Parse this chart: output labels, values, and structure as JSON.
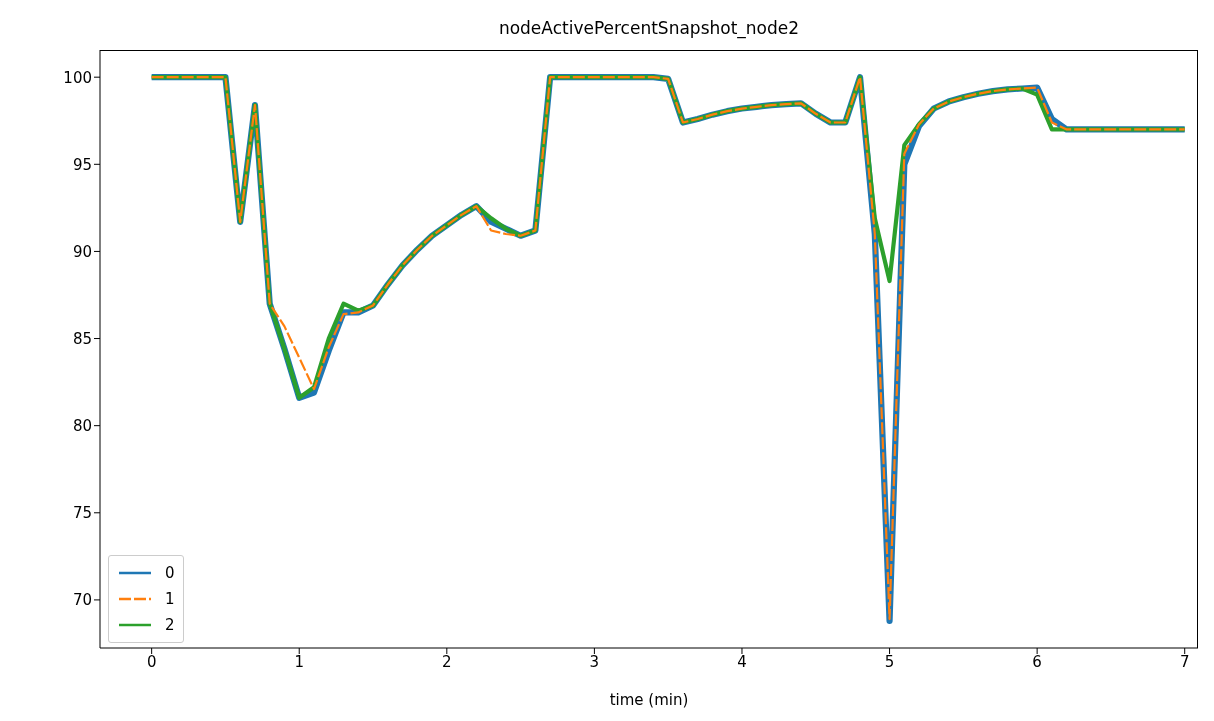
{
  "chart_data": {
    "type": "line",
    "title": "nodeActivePercentSnapshot_node2",
    "xlabel": "time (min)",
    "x": [
      0,
      0.1,
      0.2,
      0.3,
      0.4,
      0.5,
      0.6,
      0.7,
      0.8,
      0.9,
      1.0,
      1.1,
      1.2,
      1.3,
      1.4,
      1.5,
      1.6,
      1.7,
      1.8,
      1.9,
      2.0,
      2.1,
      2.2,
      2.3,
      2.4,
      2.5,
      2.6,
      2.7,
      2.8,
      2.9,
      3.0,
      3.1,
      3.2,
      3.3,
      3.4,
      3.5,
      3.6,
      3.7,
      3.8,
      3.9,
      4.0,
      4.1,
      4.2,
      4.3,
      4.4,
      4.5,
      4.6,
      4.7,
      4.8,
      4.9,
      5.0,
      5.1,
      5.2,
      5.3,
      5.4,
      5.5,
      5.6,
      5.7,
      5.8,
      5.9,
      6.0,
      6.1,
      6.2,
      6.3,
      6.4,
      6.5,
      6.6,
      6.7,
      6.8,
      6.9,
      7.0
    ],
    "series": [
      {
        "name": "0",
        "color": "#1f77b4",
        "line_style": "solid",
        "values": [
          100,
          100,
          100,
          100,
          100,
          100,
          91.7,
          98.4,
          87.0,
          84.4,
          81.6,
          81.9,
          84.3,
          86.5,
          86.5,
          86.9,
          88.1,
          89.2,
          90.1,
          90.9,
          91.5,
          92.1,
          92.6,
          91.7,
          91.3,
          90.9,
          91.2,
          100,
          100,
          100,
          100,
          100,
          100,
          100,
          100,
          99.9,
          97.4,
          97.6,
          97.85,
          98.05,
          98.2,
          98.3,
          98.4,
          98.45,
          98.5,
          97.9,
          97.4,
          97.4,
          100,
          91.0,
          68.8,
          95.0,
          97.2,
          98.2,
          98.6,
          98.85,
          99.05,
          99.2,
          99.3,
          99.35,
          99.4,
          97.6,
          97.0,
          97.0,
          97.0,
          97.0,
          97.0,
          97.0,
          97.0,
          97.0,
          97.0
        ]
      },
      {
        "name": "1",
        "color": "#ff7f0e",
        "line_style": "dashed",
        "values": [
          100,
          100,
          100,
          100,
          100,
          100,
          91.7,
          98.4,
          87.0,
          85.7,
          83.9,
          82.1,
          84.5,
          86.4,
          86.5,
          86.9,
          88.1,
          89.2,
          90.1,
          90.9,
          91.5,
          92.1,
          92.6,
          91.2,
          91.0,
          90.9,
          91.2,
          100,
          100,
          100,
          100,
          100,
          100,
          100,
          100,
          99.9,
          97.4,
          97.6,
          97.85,
          98.05,
          98.2,
          98.3,
          98.4,
          98.45,
          98.5,
          97.9,
          97.4,
          97.4,
          100,
          91.0,
          68.9,
          95.6,
          97.3,
          98.2,
          98.6,
          98.85,
          99.05,
          99.2,
          99.3,
          99.35,
          99.4,
          97.4,
          97.0,
          97.0,
          97.0,
          97.0,
          97.0,
          97.0,
          97.0,
          97.0,
          97.0
        ]
      },
      {
        "name": "2",
        "color": "#2ca02c",
        "line_style": "solid",
        "values": [
          100,
          100,
          100,
          100,
          100,
          100,
          91.7,
          98.4,
          87.0,
          84.4,
          81.6,
          82.2,
          85.0,
          87.0,
          86.6,
          86.9,
          88.1,
          89.2,
          90.1,
          90.9,
          91.5,
          92.1,
          92.6,
          91.9,
          91.3,
          90.9,
          91.2,
          100,
          100,
          100,
          100,
          100,
          100,
          100,
          100,
          99.9,
          97.4,
          97.6,
          97.85,
          98.05,
          98.2,
          98.3,
          98.4,
          98.45,
          98.5,
          97.9,
          97.4,
          97.4,
          100,
          91.9,
          88.3,
          96.1,
          97.3,
          98.2,
          98.6,
          98.85,
          99.05,
          99.2,
          99.3,
          99.35,
          99.0,
          97.0,
          97.0,
          97.0,
          97.0,
          97.0,
          97.0,
          97.0,
          97.0,
          97.0,
          97.0
        ]
      }
    ],
    "xlim": [
      -0.35,
      7.09
    ],
    "xticks": [
      0,
      1,
      2,
      3,
      4,
      5,
      6,
      7
    ],
    "ylim": [
      67.24,
      101.56
    ],
    "yticks": [
      70,
      75,
      80,
      85,
      90,
      95,
      100
    ],
    "grid": false,
    "legend": "bottom left",
    "marker": "none"
  }
}
